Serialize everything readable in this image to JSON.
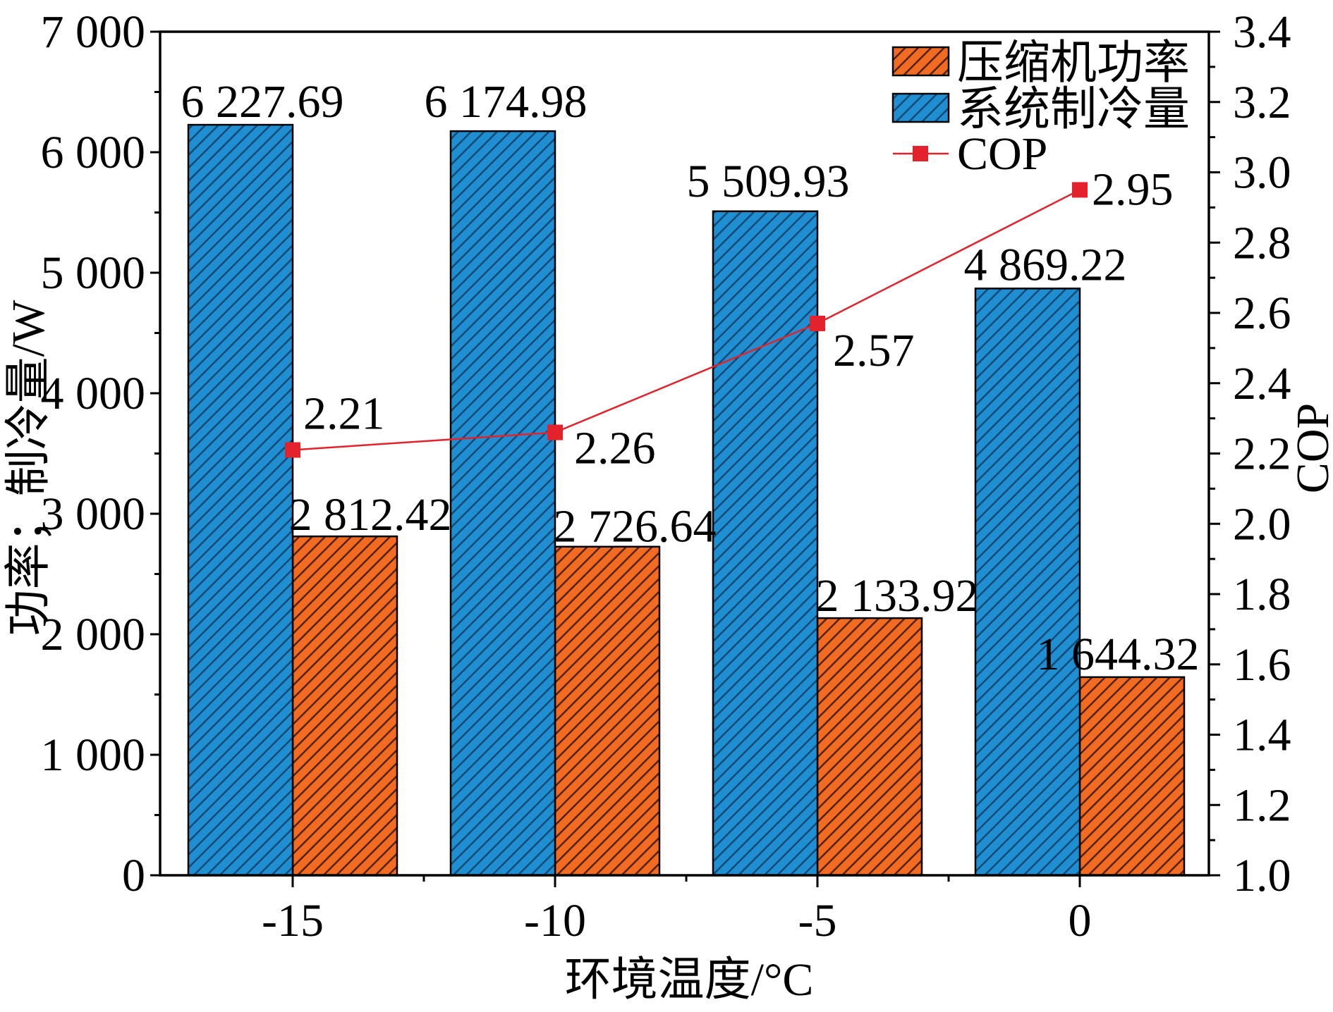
{
  "chart_data": {
    "type": "bar",
    "categories": [
      "-15",
      "-10",
      "-5",
      "0"
    ],
    "xlabel": "环境温度/°C",
    "ylabel": "功率；制冷量/W",
    "y2label": "COP",
    "ylim": [
      0,
      7000
    ],
    "y2lim": [
      1.0,
      3.4
    ],
    "yticks": [
      "0",
      "1 000",
      "2 000",
      "3 000",
      "4 000",
      "5 000",
      "6 000",
      "7 000"
    ],
    "y2ticks": [
      "1.0",
      "1.2",
      "1.4",
      "1.6",
      "1.8",
      "2.0",
      "2.2",
      "2.4",
      "2.6",
      "2.8",
      "3.0",
      "3.2",
      "3.4"
    ],
    "series": [
      {
        "name": "压缩机功率",
        "type": "bar",
        "axis": "left",
        "values": [
          2812.42,
          2726.64,
          2133.92,
          1644.32
        ],
        "labels": [
          "2 812.42",
          "2 726.64",
          "2 133.92",
          "1 644.32"
        ],
        "color": "#f26b22",
        "pattern": "diagonal-hatch"
      },
      {
        "name": "系统制冷量",
        "type": "bar",
        "axis": "left",
        "values": [
          6227.69,
          6174.98,
          5509.93,
          4869.22
        ],
        "labels": [
          "6 227.69",
          "6 174.98",
          "5 509.93",
          "4 869.22"
        ],
        "color": "#1f8fd2",
        "pattern": "diagonal-hatch"
      },
      {
        "name": "COP",
        "type": "line",
        "axis": "right",
        "values": [
          2.21,
          2.26,
          2.57,
          2.95
        ],
        "labels": [
          "2.21",
          "2.26",
          "2.57",
          "2.95"
        ],
        "color": "#e3222b",
        "marker": "square"
      }
    ],
    "legend": "top-right",
    "grid": false
  }
}
